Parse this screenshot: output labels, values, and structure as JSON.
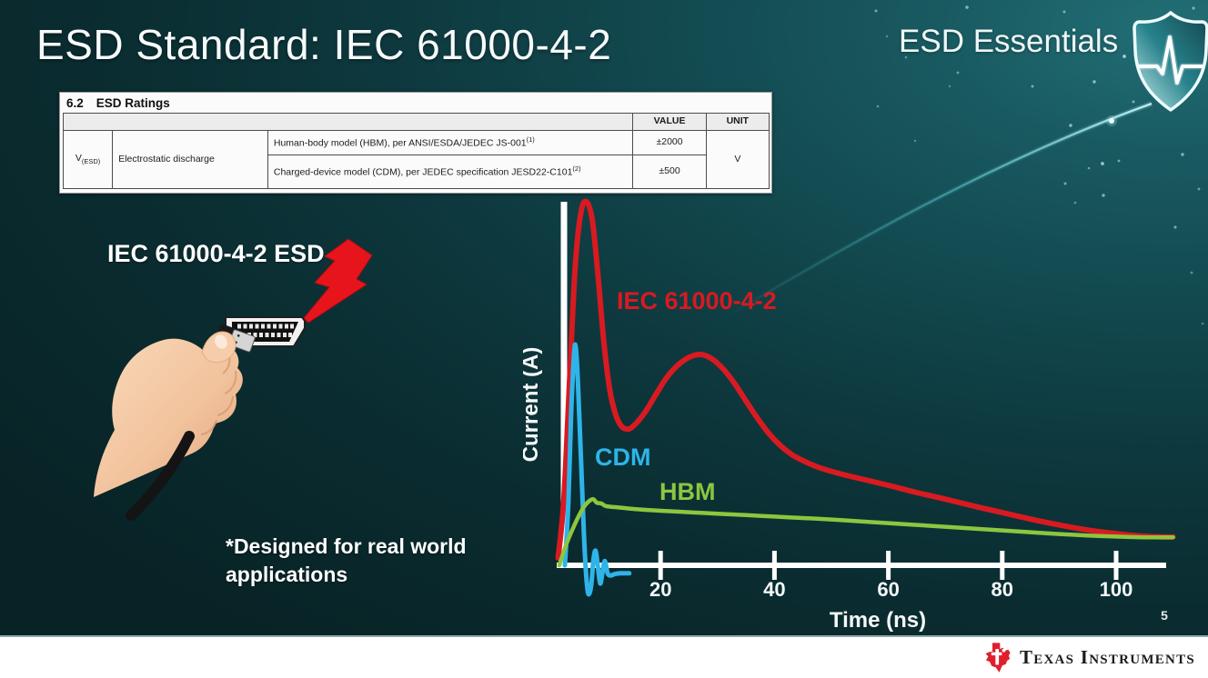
{
  "slide": {
    "title": "ESD Standard: IEC 61000-4-2",
    "program": "ESD Essentials",
    "page_number": "5",
    "illustration_caption": "IEC 61000-4-2 ESD",
    "footnote_line1": "*Designed for real world",
    "footnote_line2": "applications"
  },
  "colors": {
    "background_dark": "#0a2c30",
    "background_light": "#226e75",
    "iec_red": "#d81a21",
    "cdm_cyan": "#2fb4e9",
    "hbm_green": "#8dc63f",
    "ti_red": "#e01f2d"
  },
  "ratings_table": {
    "section_number": "6.2",
    "section_title": "ESD Ratings",
    "value_header": "VALUE",
    "unit_header": "UNIT",
    "symbol": "V",
    "symbol_subscript": "(ESD)",
    "parameter": "Electrostatic discharge",
    "rows": [
      {
        "description": "Human-body model (HBM), per ANSI/ESDA/JEDEC JS-001",
        "note_ref": "(1)",
        "value": "±2000"
      },
      {
        "description": "Charged-device model (CDM), per JEDEC specification JESD22-C101",
        "note_ref": "(2)",
        "value": "±500"
      }
    ],
    "unit": "V"
  },
  "chart_data": {
    "type": "line",
    "title": "",
    "xlabel": "Time (ns)",
    "ylabel": "Current (A)",
    "x_ticks": [
      20,
      40,
      60,
      80,
      100
    ],
    "xlim": [
      0,
      112
    ],
    "ylim_relative": [
      -0.1,
      1.05
    ],
    "grid": false,
    "legend_position": "inline-labels",
    "series": [
      {
        "name": "IEC 61000-4-2",
        "color": "#d81a21",
        "width": 6,
        "label_pos": [
          103,
          140
        ],
        "points": [
          [
            2,
            0.02
          ],
          [
            3,
            0.18
          ],
          [
            4,
            0.5
          ],
          [
            5,
            0.82
          ],
          [
            6,
            0.97
          ],
          [
            7,
            1.0
          ],
          [
            8,
            0.95
          ],
          [
            9,
            0.8
          ],
          [
            10,
            0.62
          ],
          [
            11,
            0.49
          ],
          [
            12,
            0.42
          ],
          [
            13,
            0.385
          ],
          [
            14,
            0.375
          ],
          [
            15,
            0.38
          ],
          [
            17,
            0.415
          ],
          [
            19,
            0.465
          ],
          [
            21,
            0.515
          ],
          [
            23,
            0.55
          ],
          [
            25,
            0.572
          ],
          [
            27,
            0.58
          ],
          [
            29,
            0.568
          ],
          [
            31,
            0.54
          ],
          [
            33,
            0.5
          ],
          [
            35,
            0.452
          ],
          [
            37,
            0.405
          ],
          [
            39,
            0.363
          ],
          [
            41,
            0.33
          ],
          [
            43,
            0.305
          ],
          [
            45,
            0.288
          ],
          [
            48,
            0.268
          ],
          [
            52,
            0.25
          ],
          [
            56,
            0.235
          ],
          [
            60,
            0.22
          ],
          [
            65,
            0.2
          ],
          [
            70,
            0.182
          ],
          [
            75,
            0.163
          ],
          [
            80,
            0.145
          ],
          [
            85,
            0.127
          ],
          [
            90,
            0.111
          ],
          [
            95,
            0.097
          ],
          [
            100,
            0.087
          ],
          [
            104,
            0.081
          ],
          [
            108,
            0.078
          ],
          [
            110,
            0.078
          ]
        ]
      },
      {
        "name": "CDM",
        "color": "#2fb4e9",
        "width": 5,
        "label_pos": [
          79,
          312
        ],
        "points": [
          [
            3.2,
            0.0
          ],
          [
            3.8,
            0.17
          ],
          [
            4.3,
            0.42
          ],
          [
            4.8,
            0.58
          ],
          [
            5.1,
            0.6
          ],
          [
            5.5,
            0.5
          ],
          [
            6.0,
            0.3
          ],
          [
            6.5,
            0.1
          ],
          [
            6.9,
            -0.02
          ],
          [
            7.3,
            -0.078
          ],
          [
            7.8,
            -0.058
          ],
          [
            8.2,
            0.015
          ],
          [
            8.6,
            0.04
          ],
          [
            9.0,
            -0.005
          ],
          [
            9.4,
            -0.05
          ],
          [
            9.8,
            -0.02
          ],
          [
            10.2,
            0.012
          ],
          [
            10.7,
            -0.022
          ],
          [
            11.2,
            -0.028
          ],
          [
            12,
            -0.024
          ],
          [
            13,
            -0.022
          ],
          [
            14.5,
            -0.022
          ]
        ]
      },
      {
        "name": "HBM",
        "color": "#8dc63f",
        "width": 4.5,
        "label_pos": [
          150,
          350
        ],
        "points": [
          [
            2.2,
            0.0
          ],
          [
            3.5,
            0.06
          ],
          [
            5,
            0.115
          ],
          [
            6.5,
            0.16
          ],
          [
            8,
            0.182
          ],
          [
            8.8,
            0.172
          ],
          [
            9.6,
            0.17
          ],
          [
            10.4,
            0.163
          ],
          [
            12,
            0.16
          ],
          [
            16,
            0.154
          ],
          [
            20,
            0.15
          ],
          [
            25,
            0.146
          ],
          [
            30,
            0.142
          ],
          [
            35,
            0.138
          ],
          [
            40,
            0.134
          ],
          [
            45,
            0.13
          ],
          [
            50,
            0.126
          ],
          [
            55,
            0.121
          ],
          [
            60,
            0.116
          ],
          [
            65,
            0.111
          ],
          [
            70,
            0.106
          ],
          [
            75,
            0.101
          ],
          [
            80,
            0.096
          ],
          [
            85,
            0.091
          ],
          [
            90,
            0.086
          ],
          [
            95,
            0.082
          ],
          [
            100,
            0.079
          ],
          [
            105,
            0.077
          ],
          [
            110,
            0.077
          ]
        ]
      }
    ]
  },
  "footer": {
    "brand": "Texas Instruments"
  }
}
